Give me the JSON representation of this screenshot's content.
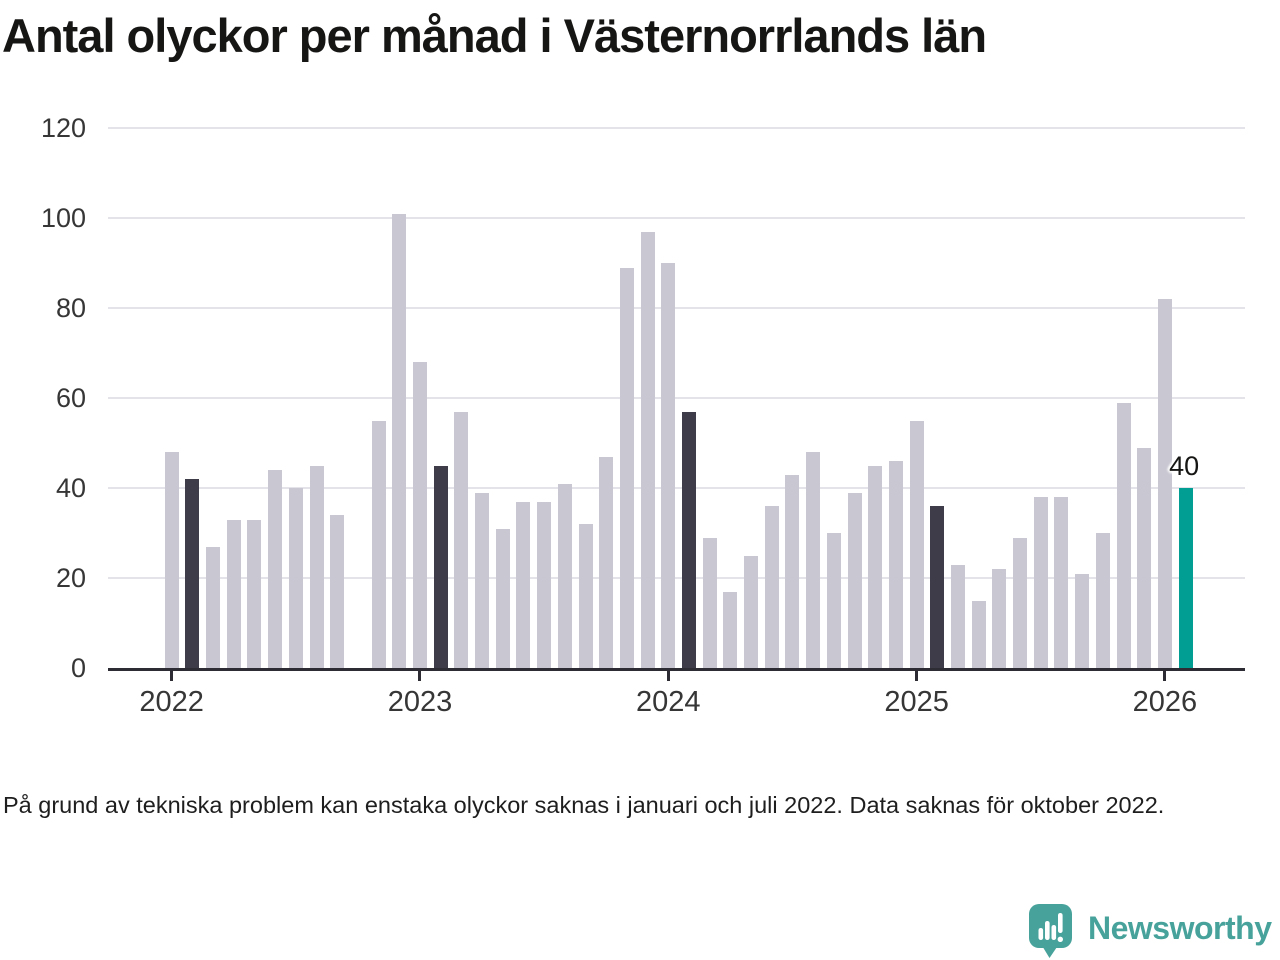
{
  "chart_data": {
    "type": "bar",
    "title": "Antal olyckor per månad i Västernorrlands län",
    "ylim": [
      0,
      120
    ],
    "yticks": [
      0,
      20,
      40,
      60,
      80,
      100,
      120
    ],
    "grid": "horizontal",
    "months": [
      "2022-01",
      "2022-02",
      "2022-03",
      "2022-04",
      "2022-05",
      "2022-06",
      "2022-07",
      "2022-08",
      "2022-09",
      "2022-10",
      "2022-11",
      "2022-12",
      "2023-01",
      "2023-02",
      "2023-03",
      "2023-04",
      "2023-05",
      "2023-06",
      "2023-07",
      "2023-08",
      "2023-09",
      "2023-10",
      "2023-11",
      "2023-12",
      "2024-01",
      "2024-02",
      "2024-03",
      "2024-04",
      "2024-05",
      "2024-06",
      "2024-07",
      "2024-08",
      "2024-09",
      "2024-10",
      "2024-11",
      "2024-12",
      "2025-01",
      "2025-02",
      "2025-03",
      "2025-04",
      "2025-05",
      "2025-06",
      "2025-07",
      "2025-08",
      "2025-09",
      "2025-10",
      "2025-11",
      "2025-12",
      "2026-01",
      "2026-02"
    ],
    "series": [
      {
        "name": "Antal olyckor",
        "values": [
          48,
          42,
          27,
          33,
          33,
          44,
          40,
          45,
          34,
          null,
          55,
          101,
          68,
          45,
          57,
          39,
          31,
          37,
          37,
          41,
          32,
          47,
          89,
          97,
          90,
          57,
          29,
          17,
          25,
          36,
          43,
          48,
          30,
          39,
          45,
          46,
          55,
          36,
          23,
          15,
          22,
          29,
          38,
          38,
          21,
          30,
          59,
          49,
          82,
          40
        ]
      }
    ],
    "missing_month_indices": [
      9
    ],
    "highlight_dark_indices": [
      1,
      13,
      25,
      37
    ],
    "highlight_current_index": 49,
    "annotation": {
      "text": "40",
      "month_index": 49
    },
    "year_labels": [
      {
        "label": "2022",
        "month_index": 0
      },
      {
        "label": "2023",
        "month_index": 12
      },
      {
        "label": "2024",
        "month_index": 24
      },
      {
        "label": "2025",
        "month_index": 36
      },
      {
        "label": "2026",
        "month_index": 48
      }
    ]
  },
  "colors": {
    "bar_default": "#c9c7d2",
    "bar_highlight_dark": "#3e3c49",
    "bar_highlight_current": "#009e93",
    "gridline": "#e4e3e9",
    "axis": "#2d2c34",
    "tick_label": "#363636",
    "brand_teal": "#47a29b"
  },
  "footnote": {
    "text": "På grund av tekniska problem kan enstaka olyckor saknas i januari och juli 2022. Data saknas för oktober 2022."
  },
  "branding": {
    "logo_text": "Newsworthy"
  }
}
